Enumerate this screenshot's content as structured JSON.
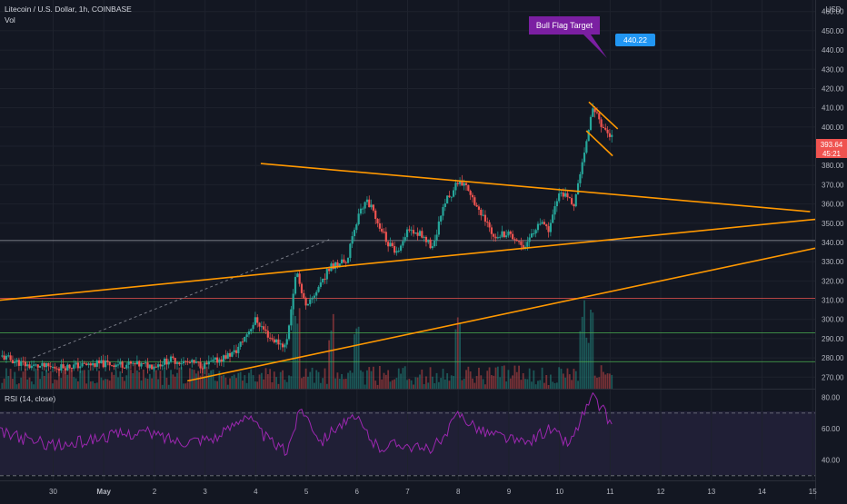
{
  "header": {
    "symbol_line": "Litecoin / U.S. Dollar, 1h, COINBASE",
    "vol_label": "Vol",
    "currency": "USD"
  },
  "annotations": {
    "callout": "Bull Flag Target",
    "target_label": "440.22",
    "price_label": "393.64",
    "countdown_label": "45:21"
  },
  "rsi": {
    "label": "RSI (14, close)",
    "ticks": [
      "80.00",
      "60.00",
      "40.00"
    ],
    "upper_band": 70,
    "lower_band": 30
  },
  "colors": {
    "background": "#131722",
    "up": "#26a69a",
    "down": "#ef5350",
    "trendline": "#ff9800",
    "rsi_line": "#9c27b0",
    "callout_bg": "#7b1fa2",
    "target_bg": "#2196f3"
  },
  "chart_data": [
    {
      "type": "candlestick",
      "title": "Litecoin / U.S. Dollar, 1h, COINBASE",
      "ylabel": "USD",
      "ylim": [
        264,
        466
      ],
      "y_ticks": [
        270,
        280,
        290,
        300,
        310,
        320,
        330,
        340,
        350,
        360,
        370,
        380,
        390,
        400,
        410,
        420,
        430,
        440,
        450,
        460
      ],
      "x_ticks": [
        "30",
        "May",
        "2",
        "3",
        "4",
        "5",
        "6",
        "7",
        "8",
        "9",
        "10",
        "11",
        "12",
        "13",
        "14",
        "15"
      ],
      "x_tick_days": [
        -1,
        0,
        1,
        2,
        3,
        4,
        5,
        6,
        7,
        8,
        9,
        10,
        11,
        12,
        13,
        14
      ],
      "xlim_days": [
        -2.05,
        14.05
      ],
      "price_path": [
        {
          "day": -2.05,
          "price": 281
        },
        {
          "day": -1.5,
          "price": 276
        },
        {
          "day": -1.0,
          "price": 275
        },
        {
          "day": 0.0,
          "price": 277
        },
        {
          "day": 1.0,
          "price": 276
        },
        {
          "day": 1.3,
          "price": 279
        },
        {
          "day": 2.0,
          "price": 276
        },
        {
          "day": 2.6,
          "price": 283
        },
        {
          "day": 3.0,
          "price": 300
        },
        {
          "day": 3.3,
          "price": 290
        },
        {
          "day": 3.6,
          "price": 286
        },
        {
          "day": 3.8,
          "price": 326
        },
        {
          "day": 4.0,
          "price": 305
        },
        {
          "day": 4.3,
          "price": 320
        },
        {
          "day": 4.5,
          "price": 328
        },
        {
          "day": 4.8,
          "price": 330
        },
        {
          "day": 5.0,
          "price": 352
        },
        {
          "day": 5.2,
          "price": 362
        },
        {
          "day": 5.4,
          "price": 352
        },
        {
          "day": 5.6,
          "price": 340
        },
        {
          "day": 5.8,
          "price": 333
        },
        {
          "day": 6.0,
          "price": 346
        },
        {
          "day": 6.3,
          "price": 344
        },
        {
          "day": 6.5,
          "price": 336
        },
        {
          "day": 6.7,
          "price": 360
        },
        {
          "day": 6.9,
          "price": 366
        },
        {
          "day": 7.0,
          "price": 372
        },
        {
          "day": 7.2,
          "price": 368
        },
        {
          "day": 7.5,
          "price": 352
        },
        {
          "day": 7.7,
          "price": 344
        },
        {
          "day": 8.0,
          "price": 345
        },
        {
          "day": 8.3,
          "price": 338
        },
        {
          "day": 8.6,
          "price": 350
        },
        {
          "day": 8.8,
          "price": 346
        },
        {
          "day": 9.0,
          "price": 367
        },
        {
          "day": 9.2,
          "price": 362
        },
        {
          "day": 9.3,
          "price": 360
        },
        {
          "day": 9.5,
          "price": 388
        },
        {
          "day": 9.65,
          "price": 412
        },
        {
          "day": 9.85,
          "price": 400
        },
        {
          "day": 10.05,
          "price": 394
        }
      ],
      "volume_spikes_days": [
        3.8,
        4.5,
        5.0,
        7.0,
        9.45,
        9.6
      ],
      "horizontal_levels": [
        {
          "price": 341,
          "color": "#b2b5be"
        },
        {
          "price": 311,
          "color": "#ef5350"
        },
        {
          "price": 293,
          "color": "#4caf50"
        },
        {
          "price": 278,
          "color": "#4caf50"
        }
      ],
      "trendlines": [
        {
          "from": [
            3.1,
            381
          ],
          "to": [
            13.95,
            356
          ],
          "color": "#ff9800"
        },
        {
          "from": [
            -2.05,
            310
          ],
          "to": [
            14.05,
            352
          ],
          "color": "#ff9800"
        },
        {
          "from": [
            1.65,
            268
          ],
          "to": [
            14.05,
            337
          ],
          "color": "#ff9800"
        },
        {
          "from": [
            9.58,
            413
          ],
          "to": [
            10.15,
            399
          ],
          "color": "#ff9800"
        },
        {
          "from": [
            9.53,
            398
          ],
          "to": [
            10.05,
            385
          ],
          "color": "#ff9800"
        }
      ],
      "dashed_line": {
        "from": [
          -1.4,
          280
        ],
        "to": [
          4.5,
          342
        ],
        "color": "#787b86"
      }
    },
    {
      "type": "line",
      "title": "RSI (14, close)",
      "ylim": [
        27,
        85
      ],
      "y_ticks": [
        80,
        60,
        40
      ],
      "bands": [
        70,
        30
      ],
      "rsi_path": [
        {
          "day": -2.05,
          "value": 58
        },
        {
          "day": -1.4,
          "value": 52
        },
        {
          "day": -0.8,
          "value": 49
        },
        {
          "day": 0.0,
          "value": 55
        },
        {
          "day": 0.8,
          "value": 58
        },
        {
          "day": 1.5,
          "value": 52
        },
        {
          "day": 2.3,
          "value": 55
        },
        {
          "day": 2.8,
          "value": 70
        },
        {
          "day": 3.2,
          "value": 54
        },
        {
          "day": 3.6,
          "value": 45
        },
        {
          "day": 3.9,
          "value": 74
        },
        {
          "day": 4.3,
          "value": 52
        },
        {
          "day": 4.6,
          "value": 62
        },
        {
          "day": 5.0,
          "value": 66
        },
        {
          "day": 5.4,
          "value": 48
        },
        {
          "day": 5.9,
          "value": 51
        },
        {
          "day": 6.3,
          "value": 46
        },
        {
          "day": 6.7,
          "value": 52
        },
        {
          "day": 7.0,
          "value": 70
        },
        {
          "day": 7.5,
          "value": 58
        },
        {
          "day": 7.9,
          "value": 55
        },
        {
          "day": 8.3,
          "value": 50
        },
        {
          "day": 8.8,
          "value": 60
        },
        {
          "day": 9.2,
          "value": 50
        },
        {
          "day": 9.45,
          "value": 68
        },
        {
          "day": 9.65,
          "value": 80
        },
        {
          "day": 9.9,
          "value": 70
        },
        {
          "day": 10.05,
          "value": 61
        }
      ]
    }
  ]
}
